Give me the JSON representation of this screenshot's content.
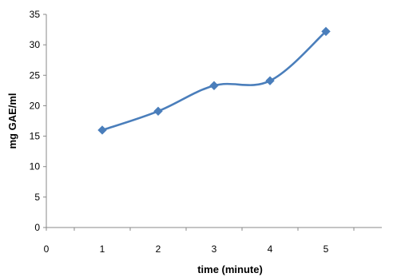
{
  "chart_data": {
    "type": "line",
    "title": "",
    "xlabel": "time (minute)",
    "ylabel": "mg GAE/ml",
    "xlim": [
      0,
      6
    ],
    "ylim": [
      0,
      35
    ],
    "x_ticks": [
      "0",
      "1",
      "2",
      "3",
      "4",
      "5"
    ],
    "y_ticks": [
      "0",
      "5",
      "10",
      "15",
      "20",
      "25",
      "30",
      "35"
    ],
    "grid": false,
    "legend": "none",
    "series": [
      {
        "color": "#4a7ebb",
        "marker": "diamond",
        "smooth": true,
        "x": [
          1,
          2,
          3,
          4,
          5
        ],
        "y": [
          16,
          19.1,
          23.3,
          24.1,
          32.2
        ]
      }
    ]
  }
}
